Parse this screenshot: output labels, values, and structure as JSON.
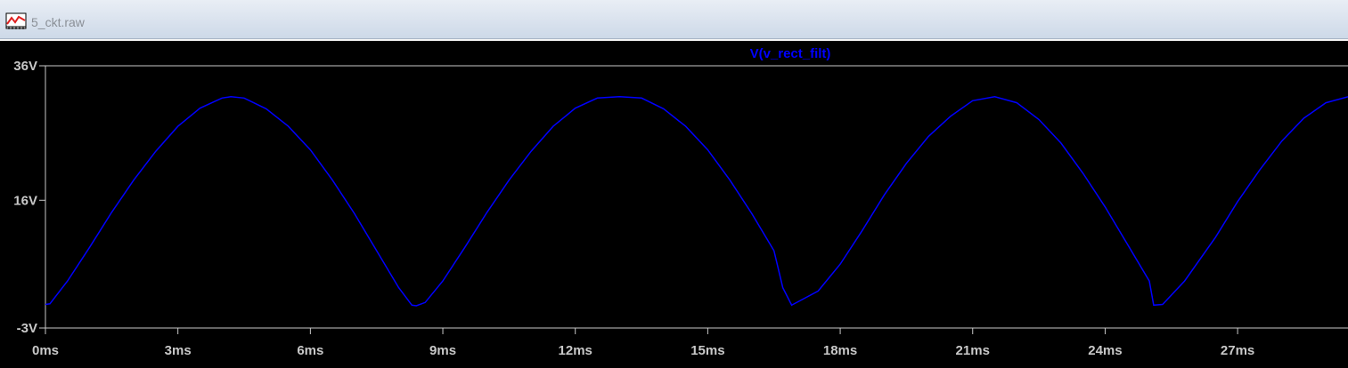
{
  "window": {
    "title": "5_ckt.raw"
  },
  "trace": {
    "name": "V(v_rect_filt)",
    "color": "#0000ff"
  },
  "colors": {
    "background": "#000000",
    "axis": "#c8c8c8",
    "label": "#c8c8c8"
  },
  "chart_data": {
    "type": "line",
    "series": [
      {
        "name": "V(v_rect_filt)",
        "x": [
          0,
          0.1,
          0.5,
          1,
          1.5,
          2,
          2.5,
          3,
          3.5,
          4,
          4.2,
          4.5,
          5,
          5.5,
          6,
          6.5,
          7,
          7.5,
          8,
          8.3,
          8.4,
          8.6,
          9,
          9.5,
          10,
          10.5,
          11,
          11.5,
          12,
          12.5,
          13,
          13.5,
          14,
          14.5,
          15,
          15.5,
          16,
          16.5,
          16.7,
          16.9,
          17.5,
          18,
          18.5,
          19,
          19.5,
          20,
          20.5,
          21,
          21.5,
          22,
          22.5,
          23,
          23.5,
          24,
          24.5,
          25,
          25.1,
          25.3,
          25.8,
          26.5,
          27,
          27.5,
          28,
          28.5,
          29,
          29.5
        ],
        "y": [
          0.5,
          0.6,
          4,
          9,
          14.2,
          19,
          23.3,
          27,
          29.7,
          31.2,
          31.4,
          31.2,
          29.6,
          27,
          23.5,
          19,
          14,
          8.5,
          3,
          0.4,
          0.3,
          0.8,
          4,
          9,
          14.2,
          19,
          23.3,
          27,
          29.7,
          31.2,
          31.4,
          31.2,
          29.6,
          27,
          23.5,
          19,
          14,
          8.5,
          3,
          0.4,
          2.5,
          6.5,
          11.5,
          16.8,
          21.5,
          25.5,
          28.5,
          30.8,
          31.4,
          30.5,
          28,
          24.5,
          20,
          15,
          9.5,
          4,
          0.4,
          0.5,
          4,
          10.5,
          15.8,
          20.5,
          24.8,
          28.2,
          30.5,
          31.4
        ]
      }
    ],
    "xlim": [
      0,
      29.5
    ],
    "ylim": [
      -3,
      36
    ],
    "xticks": [
      0,
      3,
      6,
      9,
      12,
      15,
      18,
      21,
      24,
      27
    ],
    "xtick_labels": [
      "0ms",
      "3ms",
      "6ms",
      "9ms",
      "12ms",
      "15ms",
      "18ms",
      "21ms",
      "24ms",
      "27ms"
    ],
    "yticks": [
      36,
      16,
      -3
    ],
    "ytick_labels": [
      "36V",
      "16V",
      "-3V"
    ],
    "grid": false,
    "title": "V(v_rect_filt)"
  }
}
